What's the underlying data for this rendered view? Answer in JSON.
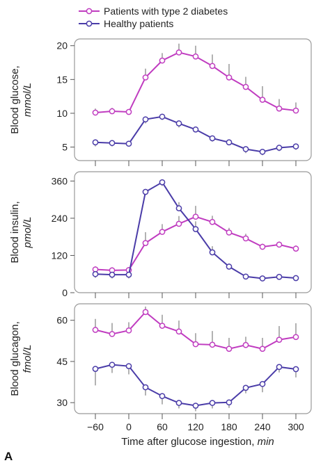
{
  "legend": {
    "diabetic_label": "Patients with type 2 diabetes",
    "healthy_label": "Healthy patients"
  },
  "panel_letter": "A",
  "colors": {
    "diabetic": "#c03cc0",
    "healthy": "#4a3ca8",
    "panel_border": "#999999",
    "error_bar": "#666666"
  },
  "chart_data": [
    {
      "type": "line",
      "ylabel": "Blood glucose,",
      "yunit": "mmol/L",
      "x": [
        -60,
        -30,
        0,
        30,
        60,
        90,
        120,
        150,
        180,
        210,
        240,
        270,
        300
      ],
      "xticks": [
        -60,
        0,
        60,
        120,
        180,
        240,
        300
      ],
      "xlim": [
        -60,
        300
      ],
      "ylim": [
        3,
        21
      ],
      "yticks": [
        5,
        10,
        15,
        20
      ],
      "series": [
        {
          "name": "Patients with type 2 diabetes",
          "key": "diabetic",
          "values": [
            10.1,
            10.3,
            10.2,
            15.3,
            17.8,
            19.0,
            18.4,
            17.0,
            15.3,
            13.9,
            12.0,
            10.7,
            10.4
          ],
          "errors": [
            0.6,
            0.5,
            0.4,
            1.3,
            1.1,
            1.3,
            1.6,
            1.7,
            2.0,
            1.5,
            2.0,
            1.4,
            1.2
          ]
        },
        {
          "name": "Healthy patients",
          "key": "healthy",
          "values": [
            5.7,
            5.6,
            5.5,
            9.1,
            9.5,
            8.5,
            7.6,
            6.3,
            5.7,
            4.7,
            4.3,
            4.9,
            5.1
          ],
          "errors": [
            0.6,
            0.5,
            0.4,
            0.6,
            0.5,
            0.6,
            0.4,
            0.5,
            0.4,
            0.6,
            0.5,
            0.5,
            0.5
          ]
        }
      ]
    },
    {
      "type": "line",
      "ylabel": "Blood insulin,",
      "yunit": "pmol/L",
      "x": [
        -60,
        -30,
        0,
        30,
        60,
        90,
        120,
        150,
        180,
        210,
        240,
        270,
        300
      ],
      "xticks": [
        -60,
        0,
        60,
        120,
        180,
        240,
        300
      ],
      "xlim": [
        -60,
        300
      ],
      "ylim": [
        0,
        390
      ],
      "yticks": [
        0,
        120,
        240,
        360
      ],
      "series": [
        {
          "name": "Patients with type 2 diabetes",
          "key": "diabetic",
          "values": [
            75,
            72,
            73,
            160,
            196,
            222,
            245,
            228,
            194,
            175,
            148,
            155,
            142
          ],
          "errors": [
            10,
            10,
            10,
            35,
            25,
            25,
            35,
            20,
            15,
            15,
            10,
            10,
            10
          ]
        },
        {
          "name": "Healthy patients",
          "key": "healthy",
          "values": [
            60,
            58,
            58,
            325,
            356,
            272,
            205,
            130,
            84,
            52,
            46,
            51,
            47
          ],
          "errors": [
            12,
            12,
            12,
            10,
            12,
            20,
            25,
            20,
            10,
            8,
            8,
            8,
            8
          ]
        }
      ]
    },
    {
      "type": "line",
      "ylabel": "Blood glucagon,",
      "yunit": "fmol/L",
      "x": [
        -60,
        -30,
        0,
        30,
        60,
        90,
        120,
        150,
        180,
        210,
        240,
        270,
        300
      ],
      "xticks": [
        -60,
        0,
        60,
        120,
        180,
        240,
        300
      ],
      "xlim": [
        -60,
        300
      ],
      "ylim": [
        26,
        66
      ],
      "yticks": [
        30,
        45,
        60
      ],
      "series": [
        {
          "name": "Patients with type 2 diabetes",
          "key": "diabetic",
          "values": [
            56.5,
            55.0,
            56.3,
            63.0,
            58.0,
            55.9,
            51.3,
            51.1,
            49.6,
            51.0,
            49.6,
            52.9,
            53.9
          ],
          "errors": [
            4,
            4,
            3,
            2,
            4,
            4,
            4,
            5,
            4,
            3,
            4,
            5,
            5
          ]
        },
        {
          "name": "Healthy patients",
          "key": "healthy",
          "values": [
            42.3,
            43.8,
            43.3,
            35.6,
            32.4,
            29.9,
            28.9,
            29.9,
            30.1,
            35.4,
            36.8,
            43.0,
            42.2
          ],
          "errors": [
            6,
            3,
            3,
            3,
            3,
            2,
            2,
            2,
            2,
            2,
            3,
            2,
            3
          ]
        }
      ]
    }
  ],
  "x_axis": {
    "label": "Time after glucose ingestion,",
    "unit": "min",
    "ticks": [
      "−60",
      "0",
      "60",
      "120",
      "180",
      "240",
      "300"
    ]
  }
}
